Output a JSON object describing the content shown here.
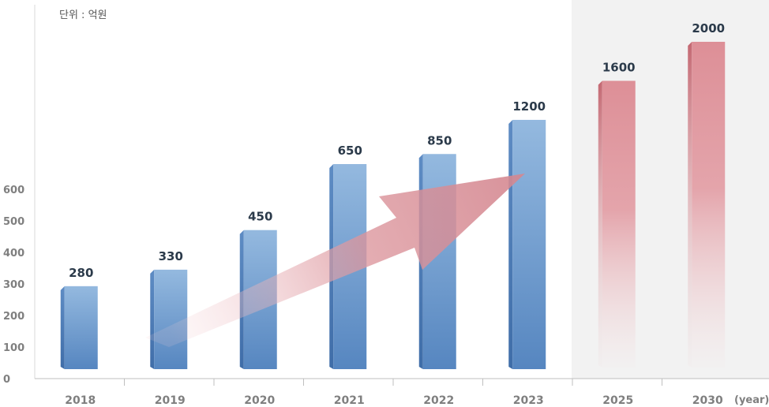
{
  "chart_data": {
    "type": "bar",
    "unit_label": "단위 : 억원",
    "x_unit_label": "(year)",
    "categories": [
      "2018",
      "2019",
      "2020",
      "2021",
      "2022",
      "2023",
      "2025",
      "2030"
    ],
    "values": [
      280,
      330,
      450,
      650,
      850,
      1200,
      1600,
      2000
    ],
    "data_labels": [
      "280",
      "330",
      "450",
      "650",
      "850",
      "1200",
      "1600",
      "2000"
    ],
    "projected_from_index": 6,
    "y_ticks": [
      "0",
      "100",
      "200",
      "300",
      "400",
      "500",
      "600"
    ],
    "legend": "none",
    "grid": false,
    "trend_arrow": true,
    "colors": {
      "actual_light": "#94b9df",
      "actual_dark": "#5686c0",
      "actual_side": "#3f6da8",
      "forecast": "#dd8f97",
      "forecast_side": "#c46872",
      "forecast_panel": "#f2f2f2",
      "arrow": "#d98c93"
    }
  }
}
